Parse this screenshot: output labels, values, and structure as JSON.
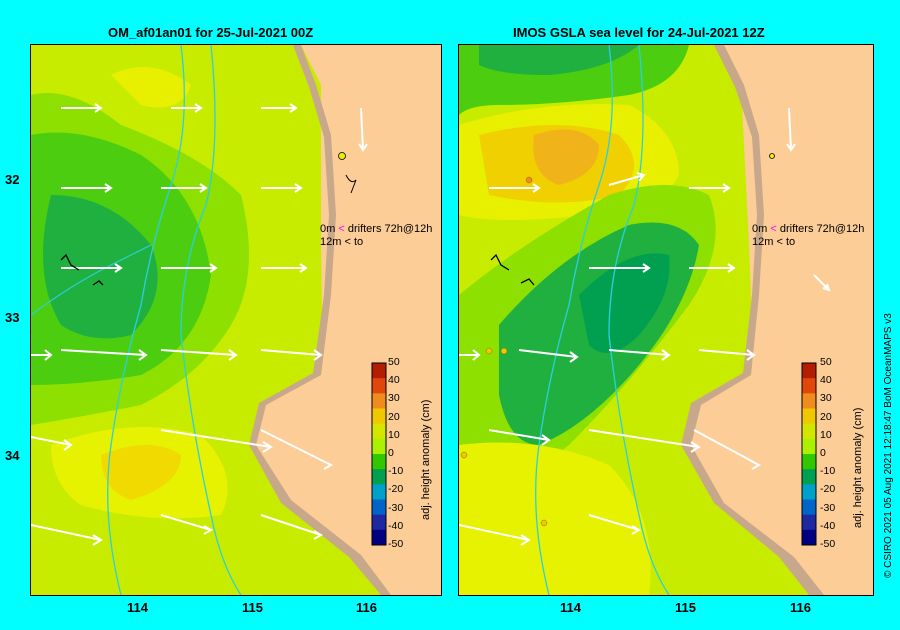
{
  "panels": [
    {
      "title": "OM_af01an01 for 25-Jul-2021 00Z",
      "legend": {
        "line1_depth": "0m",
        "line1_arrow": "<",
        "line1_text": "drifters 72h@12h",
        "line2_depth": "12m",
        "line2_arrow": "<",
        "line2_text": "to"
      },
      "colorbar_title": "adj. height anomaly (cm)"
    },
    {
      "title": "IMOS GSLA sea level  for 24-Jul-2021 12Z",
      "legend": {
        "line1_depth": "0m",
        "line1_arrow": "<",
        "line1_text": "drifters 72h@12h",
        "line2_depth": "12m",
        "line2_arrow": "<",
        "line2_text": "to"
      },
      "colorbar_title": "adj. height anomaly (cm)"
    }
  ],
  "y_ticks": [
    "32",
    "33",
    "34"
  ],
  "x_ticks": [
    "114",
    "115",
    "116"
  ],
  "colorbar": {
    "ticks": [
      "50",
      "40",
      "30",
      "20",
      "10",
      "0",
      "-10",
      "-20",
      "-30",
      "-40",
      "-50"
    ],
    "colors": [
      "#b41e00",
      "#e1460a",
      "#f08c1e",
      "#f0c800",
      "#d2e600",
      "#aaf000",
      "#32c800",
      "#00a050",
      "#00a0c8",
      "#0064c8",
      "#1e28a0",
      "#000080"
    ]
  },
  "credit": "© CSIRO 2021   05 Aug 2021 12:18:47 BoM OceanMAPS v3",
  "colors": {
    "background": "#00ffff",
    "land": "#fdcd98",
    "shelf": "#c8a88a",
    "isobath": "#2ad0e0"
  }
}
